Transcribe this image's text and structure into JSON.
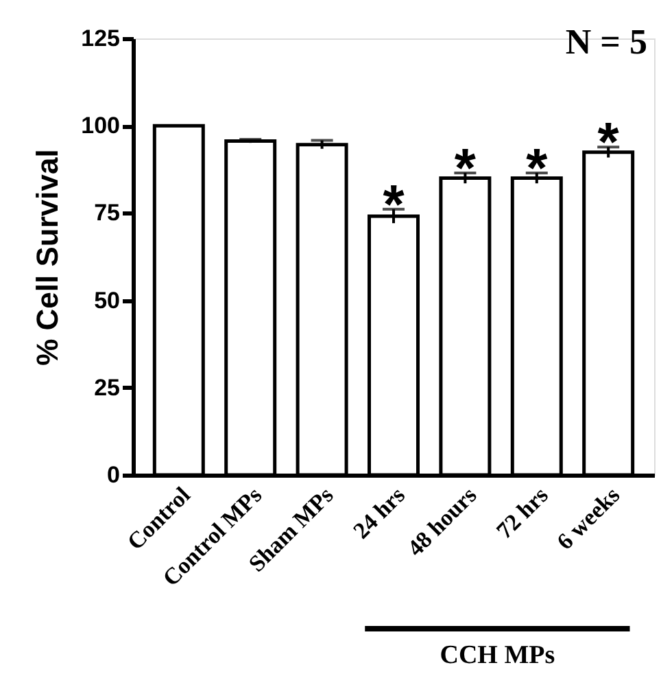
{
  "chart_data": {
    "type": "bar",
    "ylabel": "% Cell Survival",
    "categories": [
      "Control",
      "Control MPs",
      "Sham MPs",
      "24 hrs",
      "48 hours",
      "72 hrs",
      "6 weeks"
    ],
    "values": [
      100,
      95.6,
      94.6,
      74.1,
      85.0,
      85.0,
      92.4
    ],
    "errors": [
      null,
      0.5,
      1.2,
      2.0,
      1.5,
      1.5,
      1.5
    ],
    "color": "#ffffff",
    "ylim": [
      0,
      125
    ],
    "yticks": [
      0,
      25,
      50,
      75,
      100,
      125
    ],
    "grid": false,
    "annotations": [
      "N = 5",
      "CCH MPs",
      "*",
      "*",
      "*",
      "*"
    ]
  }
}
